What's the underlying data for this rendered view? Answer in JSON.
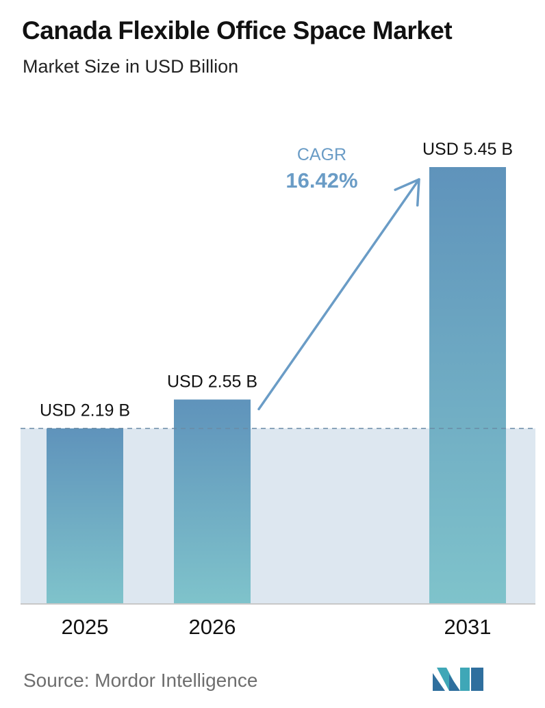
{
  "header": {
    "title": "Canada Flexible Office Space Market",
    "subtitle": "Market Size in USD Billion"
  },
  "chart_data": {
    "type": "bar",
    "title": "Canada Flexible Office Space Market",
    "subtitle": "Market Size in USD Billion",
    "xlabel": "",
    "ylabel": "",
    "categories": [
      "2025",
      "2026",
      "2031"
    ],
    "values": [
      2.19,
      2.55,
      5.45
    ],
    "data_labels": [
      "USD 2.19 B",
      "USD 2.55 B",
      "USD 5.45 B"
    ],
    "ylim": [
      0,
      5.45
    ],
    "grid": false,
    "reference_line": {
      "value": 2.19,
      "style": "dashed"
    },
    "annotation": {
      "label": "CAGR",
      "value": "16.42%"
    },
    "colors": {
      "bar_top": "#5f93bb",
      "bar_bottom": "#7fc3cb",
      "band": "#dde7f0",
      "arrow": "#6a9cc6",
      "cagr_text": "#6a9cc6",
      "axis": "#c8c8c8",
      "dash": "#6a8ba5"
    }
  },
  "footer": {
    "source": "Source:  Mordor Intelligence",
    "logo_icon": "mordor-intelligence-logo-icon"
  }
}
